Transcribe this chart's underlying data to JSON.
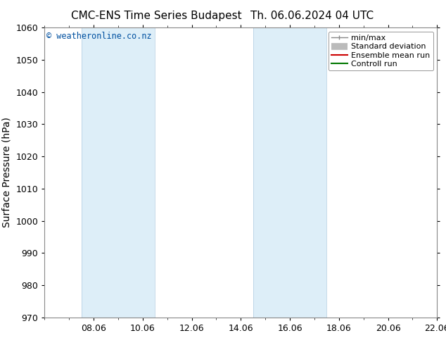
{
  "title": "CMC-ENS Time Series Budapest",
  "title2": "Th. 06.06.2024 04 UTC",
  "ylabel": "Surface Pressure (hPa)",
  "ylim": [
    970,
    1060
  ],
  "yticks": [
    970,
    980,
    990,
    1000,
    1010,
    1020,
    1030,
    1040,
    1050,
    1060
  ],
  "xlim_start": 0,
  "xlim_end": 16,
  "xtick_labels": [
    "08.06",
    "10.06",
    "12.06",
    "14.06",
    "16.06",
    "18.06",
    "20.06",
    "22.06"
  ],
  "xtick_positions": [
    2,
    4,
    6,
    8,
    10,
    12,
    14,
    16
  ],
  "shade_bands": [
    {
      "xmin": 1.5,
      "xmax": 4.5
    },
    {
      "xmin": 8.5,
      "xmax": 11.5
    }
  ],
  "shade_color": "#ddeef8",
  "shade_border_color": "#b0cce0",
  "background_color": "#ffffff",
  "watermark": "© weatheronline.co.nz",
  "legend_items": [
    {
      "label": "min/max",
      "color": "#888888",
      "lw": 1.0,
      "type": "minmax"
    },
    {
      "label": "Standard deviation",
      "color": "#bbbbbb",
      "lw": 7,
      "type": "stddev"
    },
    {
      "label": "Ensemble mean run",
      "color": "#cc0000",
      "lw": 1.5,
      "type": "line"
    },
    {
      "label": "Controll run",
      "color": "#007700",
      "lw": 1.5,
      "type": "line"
    }
  ],
  "axis_color": "#000000",
  "tick_color": "#000000",
  "font_size": 9,
  "title_font_size": 11,
  "watermark_color": "#0050a0",
  "watermark_fontsize": 8.5
}
